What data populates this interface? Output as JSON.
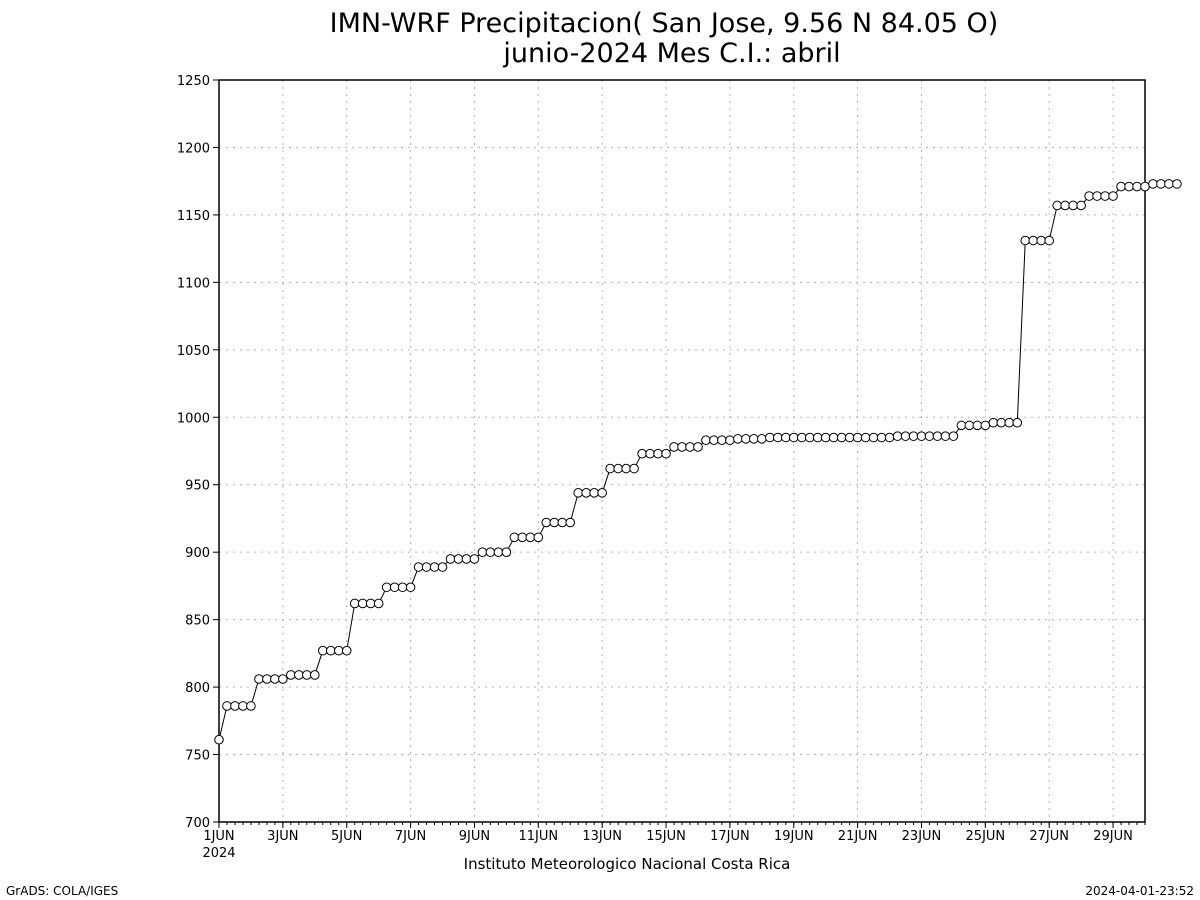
{
  "chart_data": {
    "type": "line",
    "title": "IMN-WRF  Precipitacion( San Jose, 9.56  N 84.05  O)",
    "subtitle": "junio-2024 Mes C.I.: abril",
    "xlabel": "",
    "ylabel": "",
    "credit": "Instituto Meteorologico Nacional Costa Rica",
    "ylim": [
      700,
      1250
    ],
    "yticks": [
      700,
      750,
      800,
      850,
      900,
      950,
      1000,
      1050,
      1100,
      1150,
      1200,
      1250
    ],
    "xticks": [
      {
        "day": 1,
        "label": "1JUN",
        "sublabel": "2024"
      },
      {
        "day": 3,
        "label": "3JUN"
      },
      {
        "day": 5,
        "label": "5JUN"
      },
      {
        "day": 7,
        "label": "7JUN"
      },
      {
        "day": 9,
        "label": "9JUN"
      },
      {
        "day": 11,
        "label": "11JUN"
      },
      {
        "day": 13,
        "label": "13JUN"
      },
      {
        "day": 15,
        "label": "15JUN"
      },
      {
        "day": 17,
        "label": "17JUN"
      },
      {
        "day": 19,
        "label": "19JUN"
      },
      {
        "day": 21,
        "label": "21JUN"
      },
      {
        "day": 23,
        "label": "23JUN"
      },
      {
        "day": 25,
        "label": "25JUN"
      },
      {
        "day": 27,
        "label": "27JUN"
      },
      {
        "day": 29,
        "label": "29JUN"
      }
    ],
    "xlim_days": [
      1,
      30
    ],
    "points_per_day": 4,
    "grid": true,
    "series": [
      {
        "marker": "open-circle",
        "line_color": "#000000",
        "values": [
          761,
          786,
          786,
          786,
          786,
          806,
          806,
          806,
          806,
          809,
          809,
          809,
          809,
          827,
          827,
          827,
          827,
          862,
          862,
          862,
          862,
          874,
          874,
          874,
          874,
          889,
          889,
          889,
          889,
          895,
          895,
          895,
          895,
          900,
          900,
          900,
          900,
          911,
          911,
          911,
          911,
          922,
          922,
          922,
          922,
          944,
          944,
          944,
          944,
          962,
          962,
          962,
          962,
          973,
          973,
          973,
          973,
          978,
          978,
          978,
          978,
          983,
          983,
          983,
          983,
          984,
          984,
          984,
          984,
          985,
          985,
          985,
          985,
          985,
          985,
          985,
          985,
          985,
          985,
          985,
          985,
          985,
          985,
          985,
          985,
          986,
          986,
          986,
          986,
          986,
          986,
          986,
          986,
          994,
          994,
          994,
          994,
          996,
          996,
          996,
          996,
          1131,
          1131,
          1131,
          1131,
          1157,
          1157,
          1157,
          1157,
          1164,
          1164,
          1164,
          1164,
          1171,
          1171,
          1171,
          1171,
          1173,
          1173,
          1173,
          1173
        ]
      }
    ]
  },
  "footer": {
    "left": "GrADS: COLA/IGES",
    "right": "2024-04-01-23:52"
  }
}
